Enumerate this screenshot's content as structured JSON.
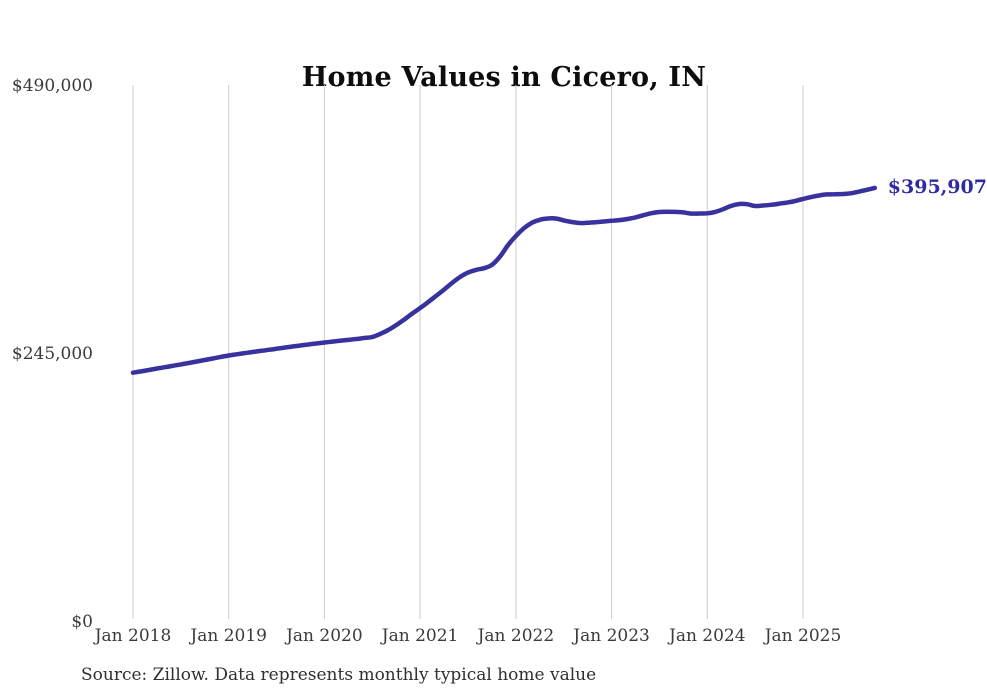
{
  "title": "Home Values in Cicero, IN",
  "end_label": "$395,907",
  "source": "Source: Zillow. Data represents monthly typical home value",
  "colors": {
    "line": "#38329f",
    "end_label": "#2e2ba3",
    "grid": "#cccccc",
    "tick_text": "#3a3a3a",
    "title_text": "#0d0d0d",
    "source_text": "#2f2f2f",
    "background": "#ffffff"
  },
  "chart_data": {
    "type": "line",
    "title": "Home Values in Cicero, IN",
    "xlabel": "",
    "ylabel": "",
    "legend": "none",
    "grid": "vertical-only",
    "ylim": [
      0,
      490000
    ],
    "y_ticks": [
      0,
      245000,
      490000
    ],
    "y_tick_labels": [
      "$0",
      "$245,000",
      "$490,000"
    ],
    "x_tick_labels": [
      "Jan 2018",
      "Jan 2019",
      "Jan 2020",
      "Jan 2021",
      "Jan 2022",
      "Jan 2023",
      "Jan 2024",
      "Jan 2025"
    ],
    "x_start": "Jan 2018",
    "x_end": "Oct 2025",
    "points_per_year": 12,
    "end_value": 395907,
    "end_value_label": "$395,907",
    "series": [
      {
        "name": "Monthly typical home value",
        "values": [
          227000,
          228200,
          229500,
          230800,
          232000,
          233300,
          234600,
          235900,
          237200,
          238600,
          240000,
          241400,
          242700,
          243800,
          244900,
          245900,
          246900,
          247900,
          248900,
          249900,
          250900,
          251900,
          252800,
          253700,
          254600,
          255400,
          256200,
          257000,
          257800,
          258700,
          259600,
          262500,
          266000,
          270500,
          275500,
          281000,
          286100,
          291500,
          297200,
          303000,
          309000,
          314500,
          318500,
          321000,
          322500,
          325500,
          333000,
          343500,
          352000,
          359000,
          364000,
          366800,
          368000,
          368000,
          366200,
          364800,
          363800,
          364000,
          364600,
          365200,
          365900,
          366500,
          367500,
          369000,
          371000,
          372800,
          373900,
          374200,
          374000,
          373500,
          372400,
          372500,
          372700,
          374000,
          376500,
          379500,
          381200,
          381000,
          379400,
          379800,
          380500,
          381500,
          382500,
          384000,
          385800,
          387500,
          389000,
          390000,
          390200,
          390400,
          391000,
          392500,
          394200,
          395907
        ]
      }
    ]
  }
}
